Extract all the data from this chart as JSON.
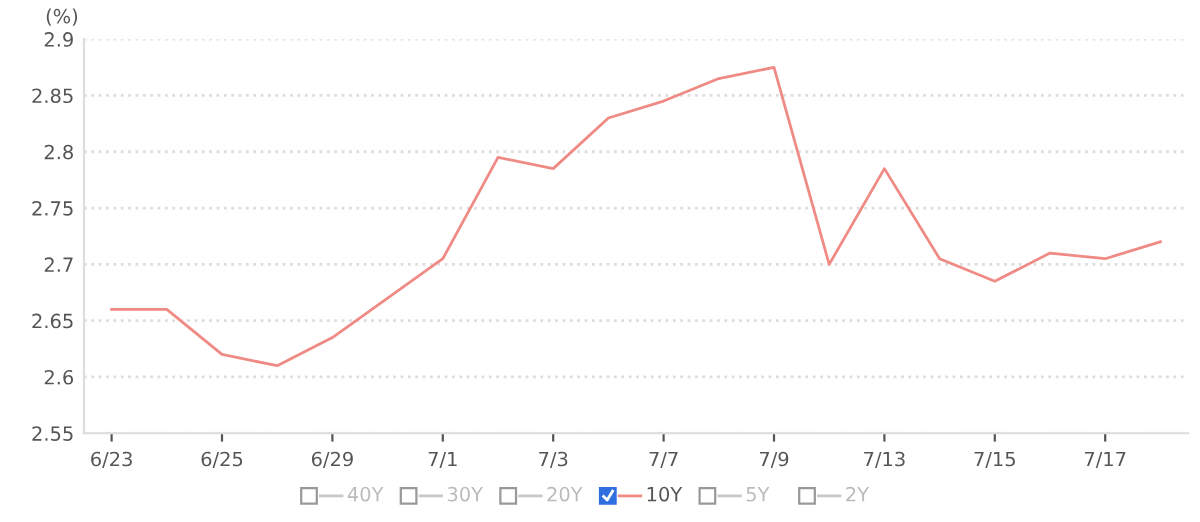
{
  "chart_data": {
    "type": "line",
    "ylabel": "(%)",
    "categories": [
      "6/23",
      null,
      "6/25",
      null,
      "6/29",
      null,
      "7/1",
      null,
      "7/3",
      null,
      "7/7",
      null,
      "7/9",
      null,
      "7/13",
      null,
      "7/15",
      null,
      "7/17",
      null
    ],
    "series": [
      {
        "name": "40Y",
        "color": "#c8c8c8",
        "values": [
          null,
          null,
          null,
          null,
          null,
          null,
          null,
          null,
          null,
          null,
          null,
          null,
          null,
          null,
          null,
          null,
          null,
          null,
          null,
          null
        ]
      },
      {
        "name": "30Y",
        "color": "#c8c8c8",
        "values": [
          null,
          null,
          null,
          null,
          null,
          null,
          null,
          null,
          null,
          null,
          null,
          null,
          null,
          null,
          null,
          null,
          null,
          null,
          null,
          null
        ]
      },
      {
        "name": "20Y",
        "color": "#c8c8c8",
        "values": [
          null,
          null,
          null,
          null,
          null,
          null,
          null,
          null,
          null,
          null,
          null,
          null,
          null,
          null,
          null,
          null,
          null,
          null,
          null,
          null
        ]
      },
      {
        "name": "10Y",
        "color": "#f08a84",
        "values": [
          2.66,
          2.66,
          2.62,
          2.61,
          2.635,
          2.67,
          2.705,
          2.795,
          2.785,
          2.83,
          2.845,
          2.865,
          2.875,
          2.7,
          2.785,
          2.705,
          2.685,
          2.71,
          2.705,
          2.72
        ]
      },
      {
        "name": "5Y",
        "color": "#c8c8c8",
        "values": [
          null,
          null,
          null,
          null,
          null,
          null,
          null,
          null,
          null,
          null,
          null,
          null,
          null,
          null,
          null,
          null,
          null,
          null,
          null,
          null
        ]
      },
      {
        "name": "2Y",
        "color": "#c8c8c8",
        "values": [
          null,
          null,
          null,
          null,
          null,
          null,
          null,
          null,
          null,
          null,
          null,
          null,
          null,
          null,
          null,
          null,
          null,
          null,
          null,
          null
        ]
      }
    ],
    "ylim": [
      2.55,
      2.9
    ],
    "yticks": [
      2.55,
      2.6,
      2.65,
      2.7,
      2.75,
      2.8,
      2.85,
      2.9
    ],
    "grid": "y",
    "legend": "bottom",
    "marker": "none",
    "line_style": "solid"
  }
}
